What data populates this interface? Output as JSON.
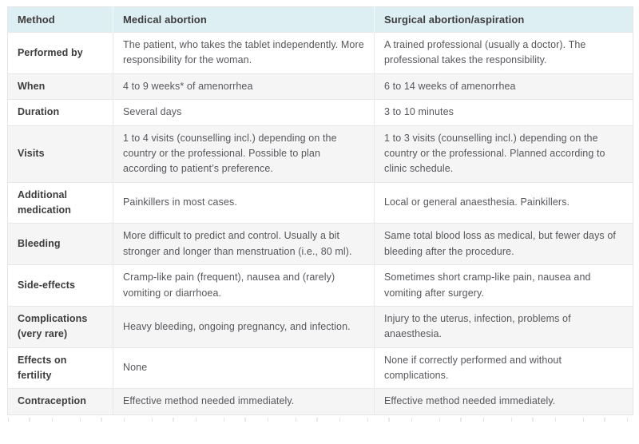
{
  "table": {
    "header": {
      "method": "Method",
      "medical": "Medical abortion",
      "surgical": "Surgical abortion/aspiration"
    },
    "rows": [
      {
        "label": "Performed by",
        "medical": "The patient, who takes the tablet independently. More responsibility for the woman.",
        "surgical": "A trained professional (usually a doctor). The professional takes the responsibility."
      },
      {
        "label": "When",
        "medical": "4 to 9 weeks* of amenorrhea",
        "surgical": "6 to 14 weeks of amenorrhea"
      },
      {
        "label": "Duration",
        "medical": "Several days",
        "surgical": "3 to 10 minutes"
      },
      {
        "label": "Visits",
        "medical": "1 to 4 visits (counselling incl.) depending on the country or the professional. Possible to plan according to patient’s preference.",
        "surgical": "1 to 3 visits (counselling incl.) depending on the country or the professional. Planned according to clinic schedule."
      },
      {
        "label": "Additional medication",
        "medical": "Painkillers in most cases.",
        "surgical": "Local or general anaesthesia. Painkillers."
      },
      {
        "label": "Bleeding",
        "medical": "More difficult to predict and control. Usually a bit stronger and longer than menstruation (i.e., 80 ml).",
        "surgical": "Same total blood loss as medical, but fewer days of bleeding after the procedure."
      },
      {
        "label": "Side-effects",
        "medical": "Cramp-like pain (frequent), nausea and (rarely) vomiting or diarrhoea.",
        "surgical": "Sometimes short cramp-like pain, nausea and vomiting after surgery."
      },
      {
        "label": "Complications (very rare)",
        "medical": "Heavy bleeding, ongoing pregnancy, and infection.",
        "surgical": "Injury to the uterus, infection, problems of anaesthesia."
      },
      {
        "label": "Effects on fertility",
        "medical": "None",
        "surgical": "None if correctly performed and without complications."
      },
      {
        "label": "Contraception",
        "medical": "Effective method needed immediately.",
        "surgical": "Effective method needed immediately."
      }
    ]
  },
  "colors": {
    "header_bg": "#ddeff3",
    "stripe_bg": "#f5f5f6",
    "border": "#e8e8e8",
    "heading_text": "#3c3c3c",
    "body_text": "#56575b"
  }
}
